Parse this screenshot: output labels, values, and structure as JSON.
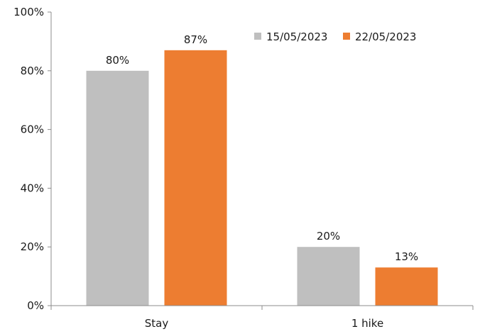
{
  "chart_data": {
    "type": "bar",
    "categories": [
      "Stay",
      "1 hike"
    ],
    "series": [
      {
        "name": "15/05/2023",
        "values": [
          80,
          20
        ],
        "color": "#bfbfbf"
      },
      {
        "name": "22/05/2023",
        "values": [
          87,
          13
        ],
        "color": "#ed7d31"
      }
    ],
    "data_labels": [
      [
        "80%",
        "20%"
      ],
      [
        "87%",
        "13%"
      ]
    ],
    "y_ticks": [
      0,
      20,
      40,
      60,
      80,
      100
    ],
    "y_tick_labels": [
      "0%",
      "20%",
      "40%",
      "60%",
      "80%",
      "100%"
    ],
    "ylim": [
      0,
      100
    ],
    "title": "",
    "xlabel": "",
    "ylabel": "",
    "grid": false,
    "legend_position": "top-right"
  }
}
